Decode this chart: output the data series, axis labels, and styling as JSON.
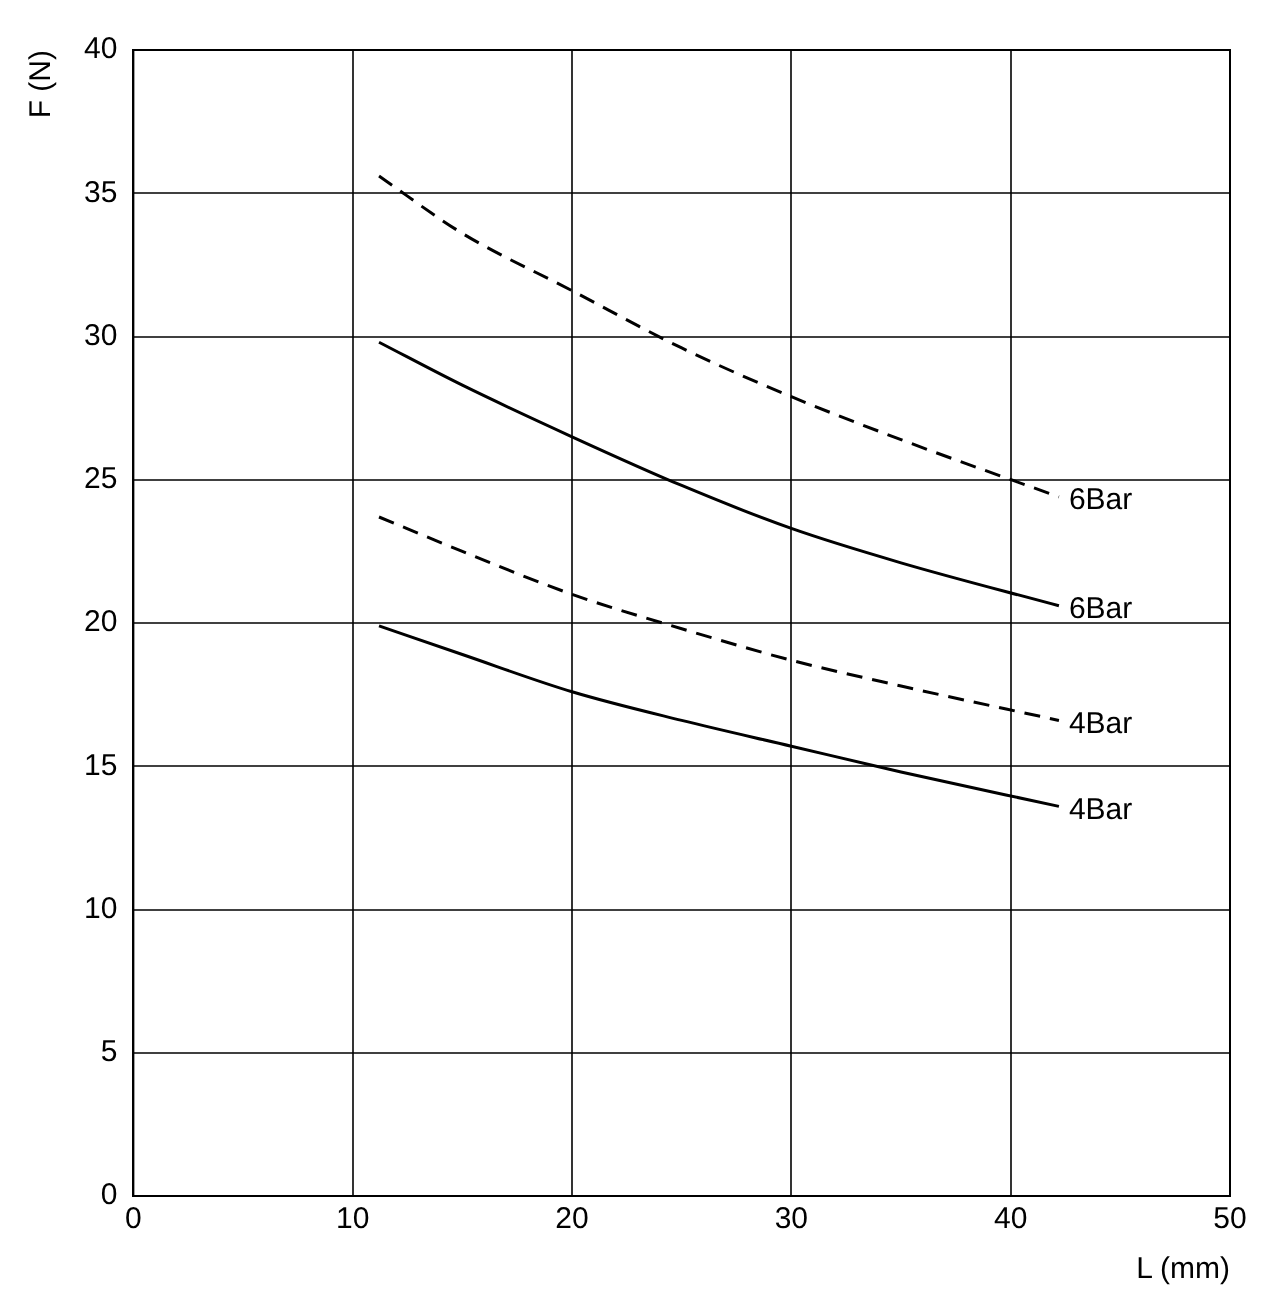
{
  "chart_data": {
    "type": "line",
    "xlabel": "L (mm)",
    "ylabel": "F (N)",
    "xlim": [
      0,
      50
    ],
    "xticks": [
      0,
      10,
      20,
      30,
      40,
      50
    ],
    "ylim": [
      0,
      40
    ],
    "yticks": [
      0,
      5,
      10,
      15,
      20,
      25,
      30,
      35,
      40
    ],
    "grid": true,
    "legend": false,
    "marker": "none",
    "series": [
      {
        "name": "6Bar",
        "color": "#000000",
        "line_style": "dashed",
        "x": [
          11.2,
          15,
          20,
          25,
          30,
          35,
          42.2
        ],
        "values": [
          35.6,
          33.6,
          31.6,
          29.6,
          27.9,
          26.4,
          24.4
        ]
      },
      {
        "name": "6Bar",
        "color": "#000000",
        "line_style": "solid",
        "x": [
          11.2,
          15,
          20,
          25,
          30,
          35,
          42.2
        ],
        "values": [
          29.8,
          28.3,
          26.5,
          24.8,
          23.3,
          22.1,
          20.6
        ]
      },
      {
        "name": "4Bar",
        "color": "#000000",
        "line_style": "dashed",
        "x": [
          11.2,
          15,
          20,
          25,
          30,
          35,
          42.2
        ],
        "values": [
          23.7,
          22.5,
          21.0,
          19.8,
          18.7,
          17.8,
          16.6
        ]
      },
      {
        "name": "4Bar",
        "color": "#000000",
        "line_style": "solid",
        "x": [
          11.2,
          15,
          20,
          25,
          30,
          35,
          42.2
        ],
        "values": [
          19.9,
          18.9,
          17.6,
          16.6,
          15.7,
          14.8,
          13.6
        ]
      }
    ]
  }
}
